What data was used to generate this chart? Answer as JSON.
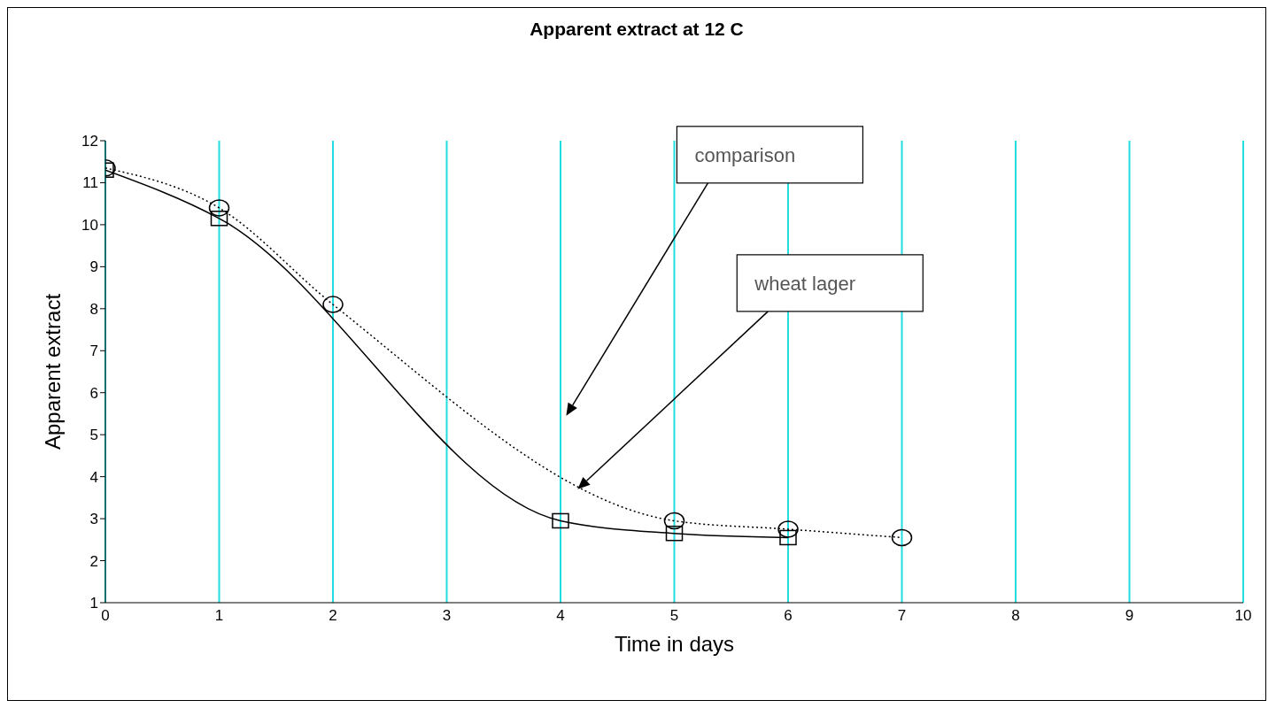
{
  "chart_data": {
    "type": "line",
    "title": "Apparent extract at 12 C",
    "xlabel": "Time in days",
    "ylabel": "Apparent extract",
    "xlim": [
      0,
      10
    ],
    "xticks": [
      0,
      1,
      2,
      3,
      4,
      5,
      6,
      7,
      8,
      9,
      10
    ],
    "ylim": [
      1,
      12
    ],
    "yticks": [
      1,
      2,
      3,
      4,
      5,
      6,
      7,
      8,
      9,
      10,
      11,
      12
    ],
    "grid": "x",
    "series": [
      {
        "name": "comparison",
        "color": "#000000",
        "x": [
          0,
          1,
          2,
          5,
          6,
          7
        ],
        "values": [
          11.35,
          10.4,
          8.1,
          2.95,
          2.75,
          2.55
        ],
        "marker": "circle",
        "line_style": "dotted"
      },
      {
        "name": "wheat lager",
        "color": "#000000",
        "x": [
          0,
          1,
          4,
          5,
          6
        ],
        "values": [
          11.3,
          10.15,
          2.95,
          2.65,
          2.55
        ],
        "marker": "square",
        "line_style": "solid"
      }
    ]
  }
}
